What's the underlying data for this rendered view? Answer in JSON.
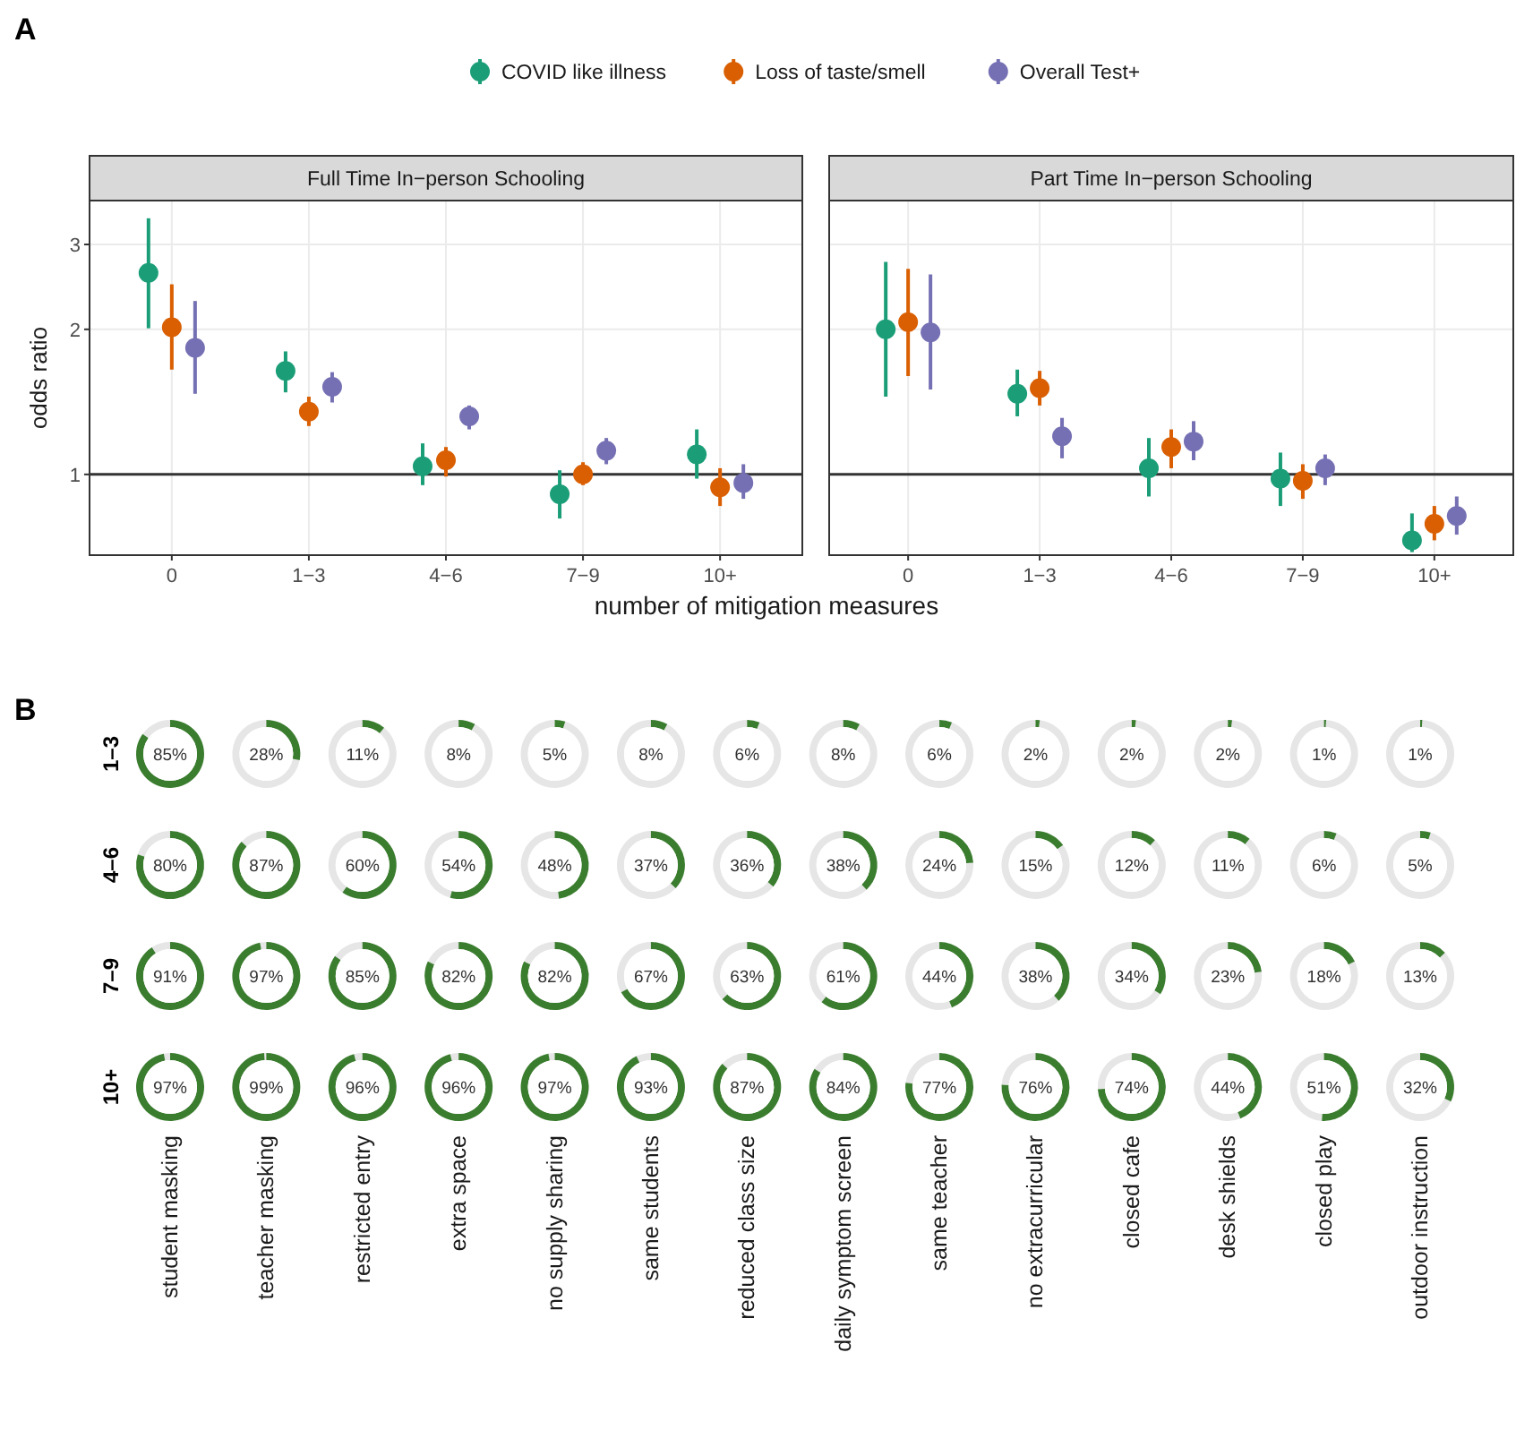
{
  "chart_data": [
    {
      "type": "scatter",
      "title": "Full Time In−person Schooling",
      "xlabel": "number of mitigation measures",
      "ylabel": "odds ratio",
      "annotations": [
        "A"
      ],
      "categories": [
        "0",
        "1−3",
        "4−6",
        "7−9",
        "10+"
      ],
      "log": "y",
      "ylim": [
        0.68,
        3.7
      ],
      "yticks": [
        1,
        2,
        3
      ],
      "grid": true,
      "legend": "top",
      "marker": "circle",
      "ref_lines": [
        {
          "axis": "y",
          "value": 1,
          "color": "#333333"
        }
      ],
      "series": [
        {
          "name": "COVID like illness",
          "color": "#1b9e77",
          "values": [
            2.62,
            1.64,
            1.04,
            0.91,
            1.1
          ],
          "errors": [
            [
              2.01,
              3.4
            ],
            [
              1.48,
              1.8
            ],
            [
              0.95,
              1.16
            ],
            [
              0.81,
              1.02
            ],
            [
              0.98,
              1.24
            ]
          ]
        },
        {
          "name": "Loss of taste/smell",
          "color": "#d95f02",
          "values": [
            2.02,
            1.35,
            1.07,
            1.0,
            0.94
          ],
          "errors": [
            [
              1.65,
              2.48
            ],
            [
              1.26,
              1.45
            ],
            [
              0.99,
              1.14
            ],
            [
              0.95,
              1.06
            ],
            [
              0.86,
              1.03
            ]
          ]
        },
        {
          "name": "Overall Test+",
          "color": "#7570b3",
          "values": [
            1.83,
            1.52,
            1.32,
            1.12,
            0.96
          ],
          "errors": [
            [
              1.47,
              2.29
            ],
            [
              1.41,
              1.63
            ],
            [
              1.24,
              1.39
            ],
            [
              1.05,
              1.19
            ],
            [
              0.89,
              1.05
            ]
          ]
        }
      ]
    },
    {
      "type": "scatter",
      "title": "Part Time In−person Schooling",
      "categories": [
        "0",
        "1−3",
        "4−6",
        "7−9",
        "10+"
      ],
      "log": "y",
      "ylim": [
        0.68,
        3.7
      ],
      "yticks": [
        1,
        2,
        3
      ],
      "tick_labels": "x",
      "grid": true,
      "marker": "circle",
      "ref_lines": [
        {
          "axis": "y",
          "value": 1,
          "color": "#333333"
        }
      ],
      "series": [
        {
          "color": "#1b9e77",
          "values": [
            2.0,
            1.47,
            1.03,
            0.98,
            0.73
          ],
          "errors": [
            [
              1.45,
              2.76
            ],
            [
              1.32,
              1.65
            ],
            [
              0.9,
              1.19
            ],
            [
              0.86,
              1.11
            ],
            [
              0.69,
              0.83
            ]
          ]
        },
        {
          "color": "#d95f02",
          "values": [
            2.07,
            1.51,
            1.14,
            0.97,
            0.79
          ],
          "errors": [
            [
              1.6,
              2.67
            ],
            [
              1.39,
              1.64
            ],
            [
              1.03,
              1.24
            ],
            [
              0.89,
              1.05
            ],
            [
              0.73,
              0.86
            ]
          ]
        },
        {
          "color": "#7570b3",
          "values": [
            1.97,
            1.2,
            1.17,
            1.03,
            0.82
          ],
          "errors": [
            [
              1.5,
              2.6
            ],
            [
              1.08,
              1.31
            ],
            [
              1.07,
              1.29
            ],
            [
              0.95,
              1.1
            ],
            [
              0.75,
              0.9
            ]
          ]
        }
      ]
    },
    {
      "type": "heatmap",
      "annotations": [
        "B"
      ],
      "color": "#3b7d2f",
      "categories": [
        "student masking",
        "teacher masking",
        "restricted entry",
        "extra space",
        "no supply sharing",
        "same students",
        "reduced class size",
        "daily symptom screen",
        "same teacher",
        "no extracurricular",
        "closed cafe",
        "desk shields",
        "closed play",
        "outdoor instruction"
      ],
      "y_categories": [
        "1–3",
        "4–6",
        "7–9",
        "10+"
      ],
      "cells": [
        [
          85,
          28,
          11,
          8,
          5,
          8,
          6,
          8,
          6,
          2,
          2,
          2,
          1,
          1
        ],
        [
          80,
          87,
          60,
          54,
          48,
          37,
          36,
          38,
          24,
          15,
          12,
          11,
          6,
          5
        ],
        [
          91,
          97,
          85,
          82,
          82,
          67,
          63,
          61,
          44,
          38,
          34,
          23,
          18,
          13
        ],
        [
          97,
          99,
          96,
          96,
          97,
          93,
          87,
          84,
          77,
          76,
          74,
          44,
          51,
          32
        ]
      ],
      "cell_labels": [
        [
          "85%",
          "28%",
          "11%",
          "8%",
          "5%",
          "8%",
          "6%",
          "8%",
          "6%",
          "2%",
          "2%",
          "2%",
          "1%",
          "1%"
        ],
        [
          "80%",
          "87%",
          "60%",
          "54%",
          "48%",
          "37%",
          "36%",
          "38%",
          "24%",
          "15%",
          "12%",
          "11%",
          "6%",
          "5%"
        ],
        [
          "91%",
          "97%",
          "85%",
          "82%",
          "82%",
          "67%",
          "63%",
          "61%",
          "44%",
          "38%",
          "34%",
          "23%",
          "18%",
          "13%"
        ],
        [
          "97%",
          "99%",
          "96%",
          "96%",
          "97%",
          "93%",
          "87%",
          "84%",
          "77%",
          "76%",
          "74%",
          "44%",
          "51%",
          "32%"
        ]
      ]
    }
  ]
}
